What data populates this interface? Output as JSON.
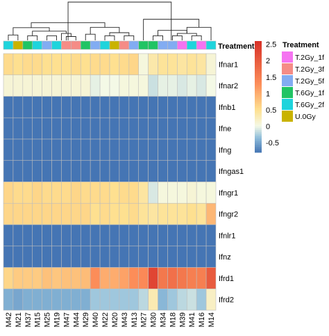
{
  "chart_data": {
    "type": "heatmap",
    "columns": [
      "M42",
      "M21",
      "M37",
      "M15",
      "M25",
      "M19",
      "M47",
      "M44",
      "M29",
      "M40",
      "M22",
      "M20",
      "M43",
      "M13",
      "M27",
      "M30",
      "M34",
      "M18",
      "M39",
      "M41",
      "M16",
      "M14"
    ],
    "rows": [
      "Ifnar1",
      "Ifnar2",
      "Ifnb1",
      "Ifne",
      "Ifng",
      "Ifngas1",
      "Ifngr1",
      "Ifngr2",
      "Ifnlr1",
      "Ifnz",
      "Ifrd1",
      "Ifrd2"
    ],
    "values": [
      [
        0.55,
        0.5,
        0.55,
        0.55,
        0.5,
        0.5,
        0.5,
        0.55,
        0.5,
        0.55,
        0.55,
        0.5,
        0.55,
        0.6,
        0.05,
        0.35,
        0.45,
        0.45,
        0.4,
        0.45,
        0.4,
        0.1
      ],
      [
        0.1,
        0.1,
        0.1,
        0.1,
        0.1,
        0.1,
        0.1,
        0.1,
        0.1,
        -0.05,
        0.0,
        0.0,
        0.05,
        0.05,
        0.05,
        -0.15,
        -0.05,
        -0.05,
        -0.1,
        -0.05,
        -0.1,
        0.0
      ],
      [
        -0.8,
        -0.8,
        -0.8,
        -0.8,
        -0.8,
        -0.8,
        -0.8,
        -0.8,
        -0.8,
        -0.8,
        -0.8,
        -0.8,
        -0.8,
        -0.8,
        -0.8,
        -0.8,
        -0.8,
        -0.8,
        -0.8,
        -0.8,
        -0.8,
        -0.8
      ],
      [
        -0.8,
        -0.8,
        -0.8,
        -0.8,
        -0.8,
        -0.8,
        -0.8,
        -0.8,
        -0.8,
        -0.8,
        -0.8,
        -0.8,
        -0.8,
        -0.8,
        -0.8,
        -0.8,
        -0.8,
        -0.8,
        -0.8,
        -0.8,
        -0.8,
        -0.8
      ],
      [
        -0.8,
        -0.8,
        -0.8,
        -0.8,
        -0.8,
        -0.8,
        -0.8,
        -0.8,
        -0.8,
        -0.8,
        -0.8,
        -0.8,
        -0.8,
        -0.8,
        -0.8,
        -0.8,
        -0.8,
        -0.8,
        -0.8,
        -0.8,
        -0.8,
        -0.8
      ],
      [
        -0.8,
        -0.8,
        -0.8,
        -0.8,
        -0.8,
        -0.8,
        -0.8,
        -0.8,
        -0.8,
        -0.8,
        -0.8,
        -0.8,
        -0.8,
        -0.8,
        -0.8,
        -0.8,
        -0.8,
        -0.8,
        -0.8,
        -0.8,
        -0.8,
        -0.8
      ],
      [
        0.6,
        0.55,
        0.55,
        0.6,
        0.55,
        0.55,
        0.55,
        0.6,
        0.55,
        0.55,
        0.55,
        0.5,
        0.55,
        0.55,
        0.4,
        -0.1,
        0.05,
        0.05,
        0.05,
        0.1,
        0.05,
        0.05
      ],
      [
        0.6,
        0.6,
        0.6,
        0.6,
        0.6,
        0.6,
        0.6,
        0.6,
        0.6,
        0.5,
        0.55,
        0.5,
        0.5,
        0.55,
        0.45,
        0.4,
        0.45,
        0.45,
        0.45,
        0.5,
        0.45,
        0.9
      ],
      [
        -0.8,
        -0.8,
        -0.8,
        -0.8,
        -0.8,
        -0.8,
        -0.8,
        -0.8,
        -0.8,
        -0.8,
        -0.8,
        -0.8,
        -0.8,
        -0.8,
        -0.8,
        -0.8,
        -0.8,
        -0.8,
        -0.8,
        -0.8,
        -0.8,
        -0.8
      ],
      [
        -0.8,
        -0.8,
        -0.8,
        -0.8,
        -0.8,
        -0.8,
        -0.8,
        -0.8,
        -0.8,
        -0.8,
        -0.8,
        -0.8,
        -0.8,
        -0.8,
        -0.8,
        -0.8,
        -0.8,
        -0.8,
        -0.8,
        -0.8,
        -0.8,
        -0.8
      ],
      [
        0.6,
        0.7,
        0.7,
        0.7,
        0.8,
        0.75,
        0.8,
        0.8,
        0.85,
        1.3,
        1.0,
        1.0,
        1.1,
        1.3,
        1.35,
        2.3,
        1.6,
        1.7,
        1.6,
        1.5,
        1.5,
        2.0
      ],
      [
        -0.45,
        -0.5,
        -0.45,
        -0.45,
        -0.45,
        -0.45,
        -0.45,
        -0.45,
        -0.45,
        -0.3,
        -0.3,
        -0.3,
        -0.3,
        -0.3,
        -0.2,
        0.3,
        -0.4,
        -0.3,
        -0.2,
        -0.15,
        -0.3,
        0.2
      ]
    ],
    "annotation": {
      "title": "Treatment",
      "column_groups": [
        "T.6Gy_2f",
        "U.0Gy",
        "T.6Gy_1f",
        "T.6Gy_2f",
        "T.2Gy_5f",
        "T.6Gy_2f",
        "T.2Gy_3f",
        "T.2Gy_3f",
        "T.6Gy_1f",
        "T.2Gy_5f",
        "T.6Gy_2f",
        "U.0Gy",
        "T.2Gy_3f",
        "T.2Gy_5f",
        "T.6Gy_1f",
        "T.6Gy_1f",
        "T.2Gy_5f",
        "T.2Gy_5f",
        "T.2Gy_1f",
        "T.6Gy_2f",
        "T.2Gy_1f",
        "T.6Gy_2f"
      ],
      "legend": [
        {
          "name": "T.2Gy_1f",
          "color": "#f573f1"
        },
        {
          "name": "T.2Gy_3f",
          "color": "#f58c86"
        },
        {
          "name": "T.2Gy_5f",
          "color": "#82acf2"
        },
        {
          "name": "T.6Gy_1f",
          "color": "#20c464"
        },
        {
          "name": "T.6Gy_2f",
          "color": "#1ed4dc"
        },
        {
          "name": "U.0Gy",
          "color": "#c9b300"
        }
      ]
    },
    "color_scale": {
      "ticks": [
        "2.5",
        "2",
        "1.5",
        "1",
        "0.5",
        "0",
        "-0.5"
      ],
      "tick_values": [
        2.5,
        2,
        1.5,
        1,
        0.5,
        0,
        -0.5
      ],
      "min": -0.8,
      "max": 2.6,
      "stops": [
        {
          "v": -0.8,
          "c": "#4575b4"
        },
        {
          "v": -0.35,
          "c": "#91bfdb"
        },
        {
          "v": 0.0,
          "c": "#f4f9e6"
        },
        {
          "v": 0.5,
          "c": "#fee090"
        },
        {
          "v": 1.3,
          "c": "#fc8d59"
        },
        {
          "v": 2.6,
          "c": "#d73027"
        }
      ]
    }
  }
}
